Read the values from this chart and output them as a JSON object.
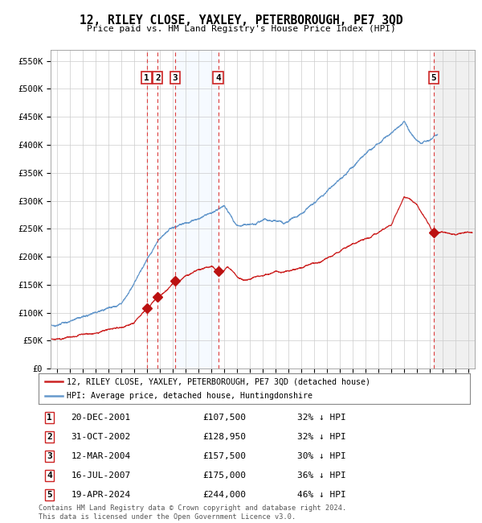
{
  "title": "12, RILEY CLOSE, YAXLEY, PETERBOROUGH, PE7 3QD",
  "subtitle": "Price paid vs. HM Land Registry's House Price Index (HPI)",
  "ylim": [
    0,
    570000
  ],
  "yticks": [
    0,
    50000,
    100000,
    150000,
    200000,
    250000,
    300000,
    350000,
    400000,
    450000,
    500000,
    550000
  ],
  "ytick_labels": [
    "£0",
    "£50K",
    "£100K",
    "£150K",
    "£200K",
    "£250K",
    "£300K",
    "£350K",
    "£400K",
    "£450K",
    "£500K",
    "£550K"
  ],
  "xlim_start": 1994.5,
  "xlim_end": 2027.5,
  "sale_dates_num": [
    2001.97,
    2002.83,
    2004.19,
    2007.54,
    2024.3
  ],
  "sale_prices": [
    107500,
    128950,
    157500,
    175000,
    244000
  ],
  "sale_labels": [
    "1",
    "2",
    "3",
    "4",
    "5"
  ],
  "sale_date_strs": [
    "20-DEC-2001",
    "31-OCT-2002",
    "12-MAR-2004",
    "16-JUL-2007",
    "19-APR-2024"
  ],
  "sale_price_strs": [
    "£107,500",
    "£128,950",
    "£157,500",
    "£175,000",
    "£244,000"
  ],
  "sale_hpi_strs": [
    "32% ↓ HPI",
    "32% ↓ HPI",
    "30% ↓ HPI",
    "36% ↓ HPI",
    "46% ↓ HPI"
  ],
  "vline_color": "#dd4444",
  "shade_region": [
    2004.19,
    2007.54
  ],
  "shade_color": "#ddeeff",
  "hatch_region_start": 2024.3,
  "red_line_color": "#cc2222",
  "blue_line_color": "#6699cc",
  "marker_color": "#bb1111",
  "legend_line1": "12, RILEY CLOSE, YAXLEY, PETERBOROUGH, PE7 3QD (detached house)",
  "legend_line2": "HPI: Average price, detached house, Huntingdonshire",
  "footer1": "Contains HM Land Registry data © Crown copyright and database right 2024.",
  "footer2": "This data is licensed under the Open Government Licence v3.0.",
  "bg_color": "#ffffff",
  "grid_color": "#cccccc"
}
